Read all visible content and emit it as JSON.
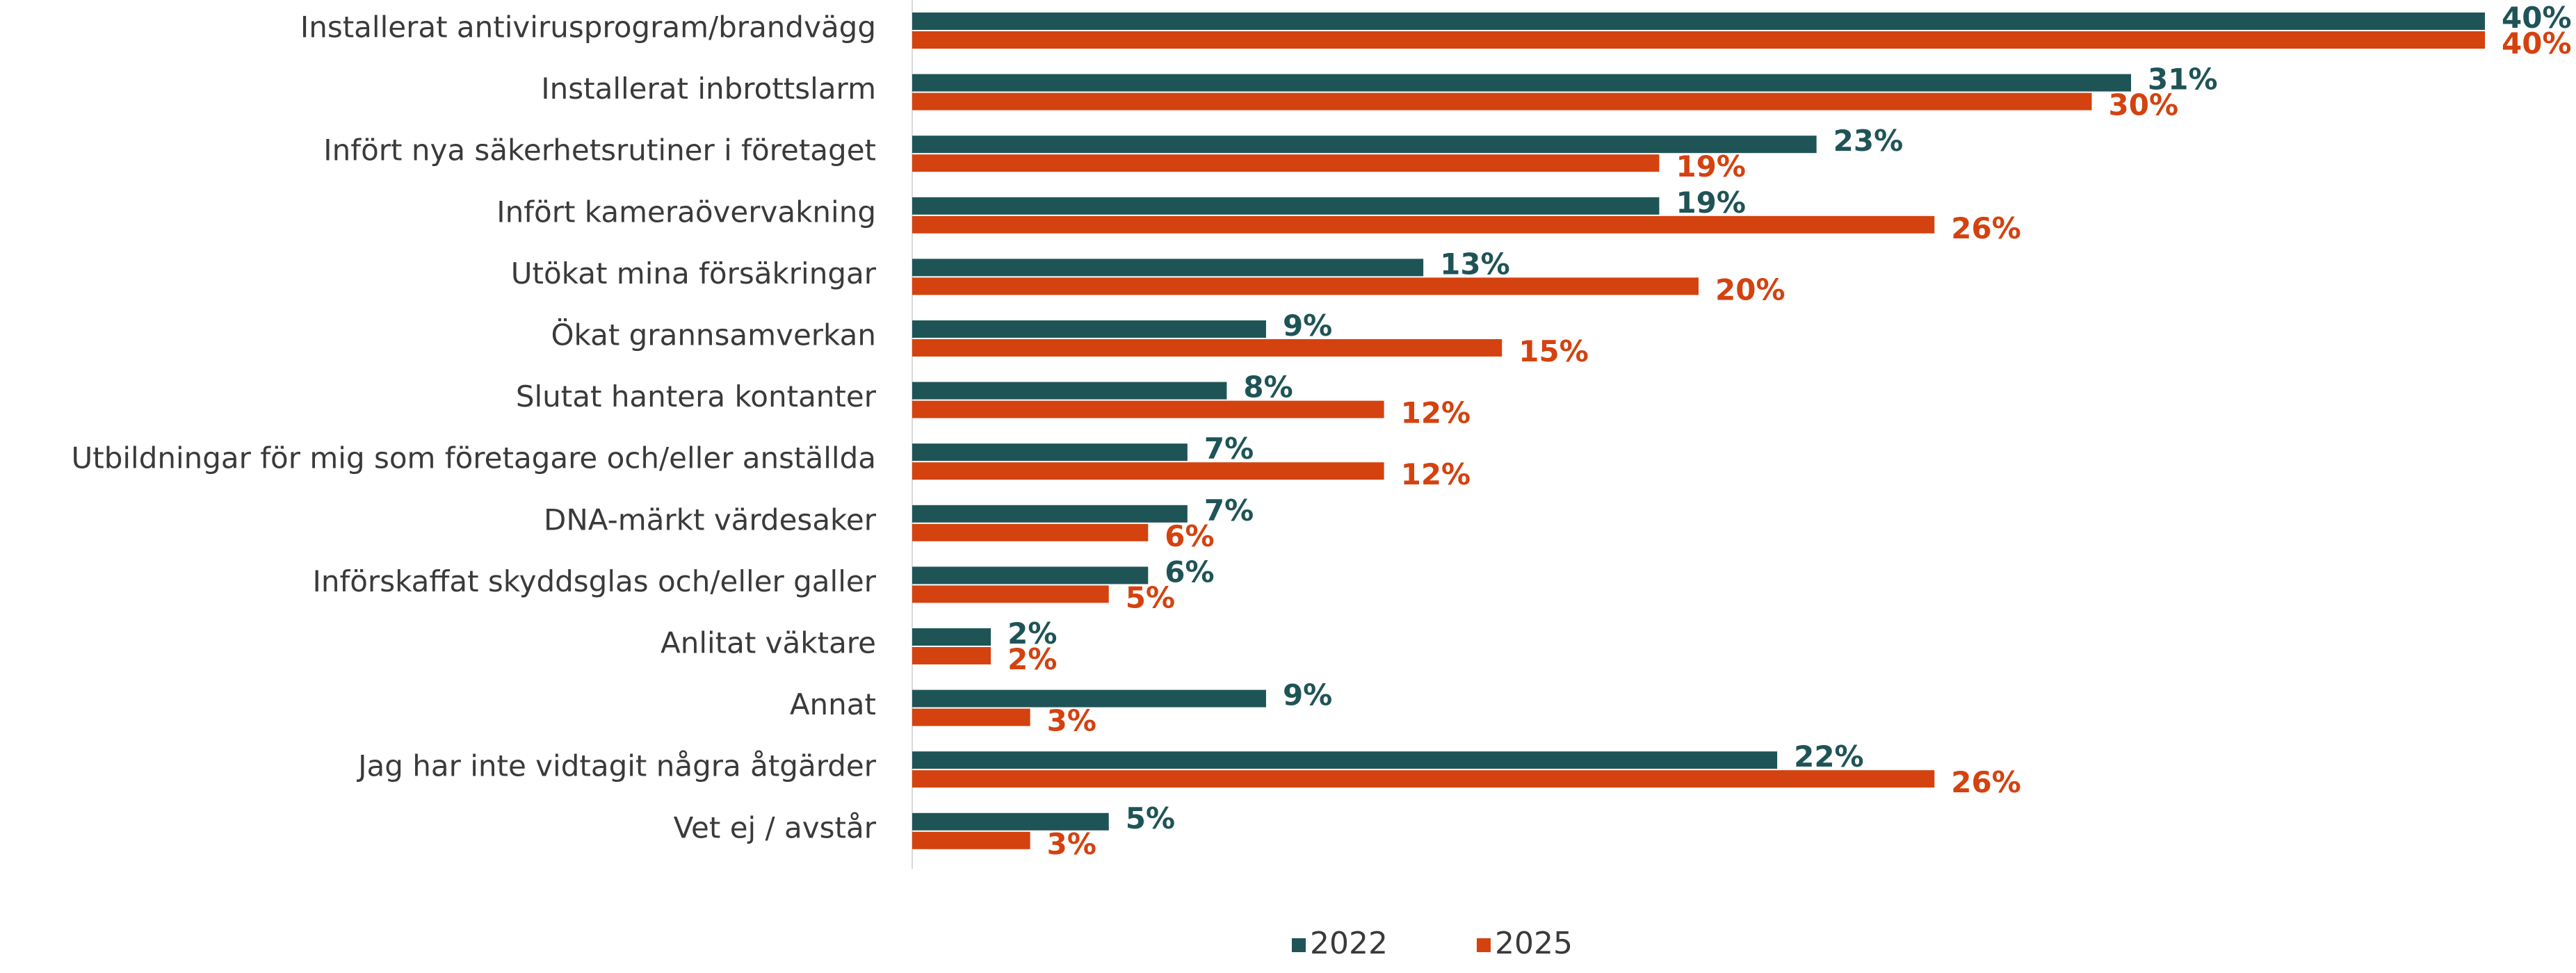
{
  "chart_data": {
    "type": "bar",
    "orientation": "horizontal",
    "categories": [
      "Installerat antivirusprogram/brandvägg",
      "Installerat inbrottslarm",
      "Infört nya säkerhetsrutiner i företaget",
      "Infört kameraövervakning",
      "Utökat mina försäkringar",
      "Ökat grannsamverkan",
      "Slutat hantera kontanter",
      "Utbildningar för mig som företagare och/eller anställda",
      "DNA-märkt värdesaker",
      "Införskaffat skyddsglas och/eller galler",
      "Anlitat väktare",
      "Annat",
      "Jag har inte vidtagit några åtgärder",
      "Vet ej / avstår"
    ],
    "series": [
      {
        "name": "2022",
        "color": "#1f5457",
        "values": [
          40,
          31,
          23,
          19,
          13,
          9,
          8,
          7,
          7,
          6,
          2,
          9,
          22,
          5
        ],
        "labels": [
          "40%",
          "31%",
          "23%",
          "19%",
          "13%",
          "9%",
          "8%",
          "7%",
          "7%",
          "6%",
          "2%",
          "9%",
          "22%",
          "5%"
        ]
      },
      {
        "name": "2025",
        "color": "#d4420f",
        "values": [
          40,
          30,
          19,
          26,
          20,
          15,
          12,
          12,
          6,
          5,
          2,
          3,
          26,
          3
        ],
        "labels": [
          "40%",
          "30%",
          "19%",
          "26%",
          "20%",
          "15%",
          "12%",
          "12%",
          "6%",
          "5%",
          "2%",
          "3%",
          "26%",
          "3%"
        ]
      }
    ],
    "xlim": [
      0,
      40
    ],
    "grid": false,
    "legend_position": "bottom-center"
  }
}
